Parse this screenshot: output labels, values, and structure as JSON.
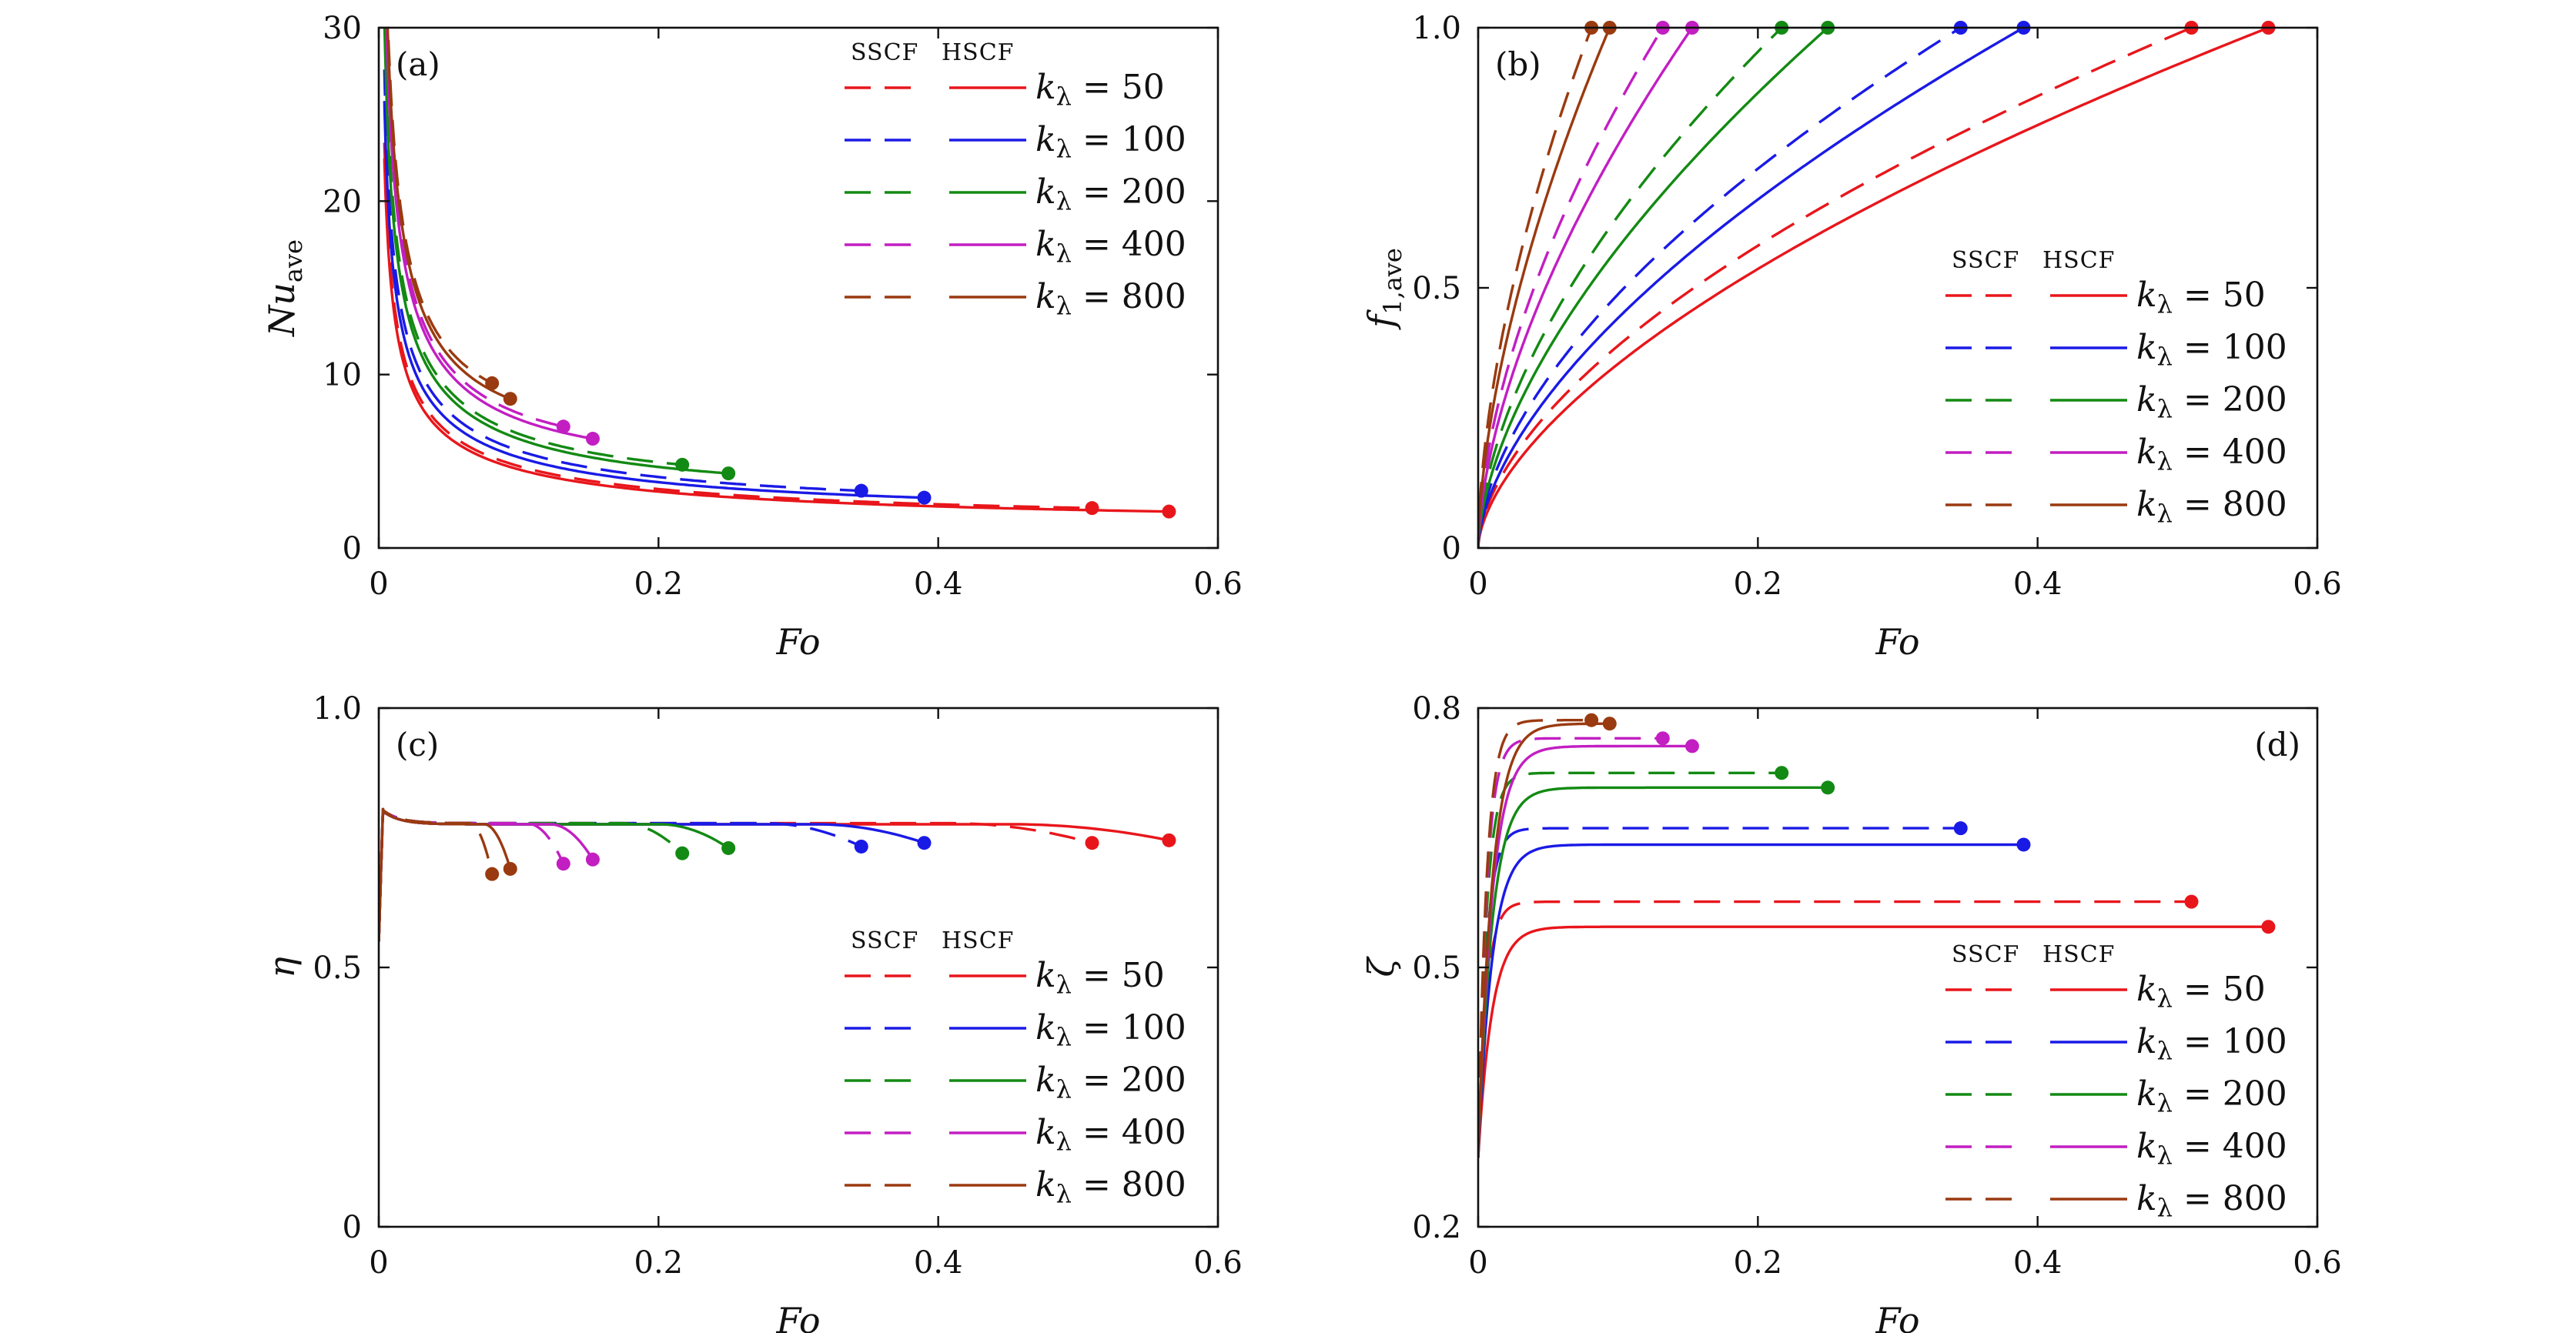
{
  "figure": {
    "series_meta": [
      {
        "k": "50",
        "color": "#e8161b"
      },
      {
        "k": "100",
        "color": "#1a1ae6"
      },
      {
        "k": "200",
        "color": "#138a13"
      },
      {
        "k": "400",
        "color": "#c21ec2"
      },
      {
        "k": "800",
        "color": "#9a3a10"
      }
    ],
    "legend_header": {
      "sscf": "SSCF",
      "hscf": "HSCF"
    },
    "legend_prefix": "kλ = "
  },
  "chart_data": [
    {
      "id": "a",
      "type": "line",
      "tag": "(a)",
      "xlabel": "Fo",
      "ylabel": "Nu_ave",
      "xlim": [
        0,
        0.6
      ],
      "ylim": [
        0,
        30
      ],
      "xticks": [
        "0",
        "0.2",
        "0.4",
        "0.6"
      ],
      "yticks": [
        "0",
        "10",
        "20",
        "30"
      ],
      "legend_pos": "top-right",
      "series": [
        {
          "k": "50",
          "variant": "SSCF",
          "end_x": 0.51,
          "end_y": 2.3
        },
        {
          "k": "50",
          "variant": "HSCF",
          "end_x": 0.565,
          "end_y": 2.1
        },
        {
          "k": "100",
          "variant": "SSCF",
          "end_x": 0.345,
          "end_y": 3.3
        },
        {
          "k": "100",
          "variant": "HSCF",
          "end_x": 0.39,
          "end_y": 2.9
        },
        {
          "k": "200",
          "variant": "SSCF",
          "end_x": 0.217,
          "end_y": 4.8
        },
        {
          "k": "200",
          "variant": "HSCF",
          "end_x": 0.25,
          "end_y": 4.3
        },
        {
          "k": "400",
          "variant": "SSCF",
          "end_x": 0.132,
          "end_y": 7.0
        },
        {
          "k": "400",
          "variant": "HSCF",
          "end_x": 0.153,
          "end_y": 6.3
        },
        {
          "k": "800",
          "variant": "SSCF",
          "end_x": 0.081,
          "end_y": 9.5
        },
        {
          "k": "800",
          "variant": "HSCF",
          "end_x": 0.094,
          "end_y": 8.6
        }
      ]
    },
    {
      "id": "b",
      "type": "line",
      "tag": "(b)",
      "xlabel": "Fo",
      "ylabel": "f_1,ave",
      "xlim": [
        0,
        0.6
      ],
      "ylim": [
        0,
        1.0
      ],
      "xticks": [
        "0",
        "0.2",
        "0.4",
        "0.6"
      ],
      "yticks": [
        "0",
        "0.5",
        "1.0"
      ],
      "legend_pos": "bottom-right",
      "series": [
        {
          "k": "50",
          "variant": "SSCF",
          "end_x": 0.51,
          "end_y": 1.0
        },
        {
          "k": "50",
          "variant": "HSCF",
          "end_x": 0.565,
          "end_y": 1.0
        },
        {
          "k": "100",
          "variant": "SSCF",
          "end_x": 0.345,
          "end_y": 1.0
        },
        {
          "k": "100",
          "variant": "HSCF",
          "end_x": 0.39,
          "end_y": 1.0
        },
        {
          "k": "200",
          "variant": "SSCF",
          "end_x": 0.217,
          "end_y": 1.0
        },
        {
          "k": "200",
          "variant": "HSCF",
          "end_x": 0.25,
          "end_y": 1.0
        },
        {
          "k": "400",
          "variant": "SSCF",
          "end_x": 0.132,
          "end_y": 1.0
        },
        {
          "k": "400",
          "variant": "HSCF",
          "end_x": 0.153,
          "end_y": 1.0
        },
        {
          "k": "800",
          "variant": "SSCF",
          "end_x": 0.081,
          "end_y": 1.0
        },
        {
          "k": "800",
          "variant": "HSCF",
          "end_x": 0.094,
          "end_y": 1.0
        }
      ]
    },
    {
      "id": "c",
      "type": "line",
      "tag": "(c)",
      "xlabel": "Fo",
      "ylabel": "η",
      "xlim": [
        0,
        0.6
      ],
      "ylim": [
        0,
        1.0
      ],
      "xticks": [
        "0",
        "0.2",
        "0.4",
        "0.6"
      ],
      "yticks": [
        "0",
        "0.5",
        "1.0"
      ],
      "legend_pos": "bottom-right",
      "series": [
        {
          "k": "50",
          "variant": "SSCF",
          "plateau": 0.778,
          "end_x": 0.51,
          "end_y": 0.74
        },
        {
          "k": "50",
          "variant": "HSCF",
          "plateau": 0.776,
          "end_x": 0.565,
          "end_y": 0.745
        },
        {
          "k": "100",
          "variant": "SSCF",
          "plateau": 0.778,
          "end_x": 0.345,
          "end_y": 0.733
        },
        {
          "k": "100",
          "variant": "HSCF",
          "plateau": 0.776,
          "end_x": 0.39,
          "end_y": 0.74
        },
        {
          "k": "200",
          "variant": "SSCF",
          "plateau": 0.778,
          "end_x": 0.217,
          "end_y": 0.72
        },
        {
          "k": "200",
          "variant": "HSCF",
          "plateau": 0.776,
          "end_x": 0.25,
          "end_y": 0.73
        },
        {
          "k": "400",
          "variant": "SSCF",
          "plateau": 0.778,
          "end_x": 0.132,
          "end_y": 0.7
        },
        {
          "k": "400",
          "variant": "HSCF",
          "plateau": 0.776,
          "end_x": 0.153,
          "end_y": 0.708
        },
        {
          "k": "800",
          "variant": "SSCF",
          "plateau": 0.778,
          "end_x": 0.081,
          "end_y": 0.68
        },
        {
          "k": "800",
          "variant": "HSCF",
          "plateau": 0.776,
          "end_x": 0.094,
          "end_y": 0.69
        }
      ]
    },
    {
      "id": "d",
      "type": "line",
      "tag": "(d)",
      "xlabel": "Fo",
      "ylabel": "ζ",
      "xlim": [
        0,
        0.6
      ],
      "ylim": [
        0.2,
        0.8
      ],
      "xticks": [
        "0",
        "0.2",
        "0.4",
        "0.6"
      ],
      "yticks": [
        "0.2",
        "0.5",
        "0.8"
      ],
      "legend_pos": "bottom-right",
      "series": [
        {
          "k": "50",
          "variant": "SSCF",
          "plateau": 0.576,
          "end_x": 0.51,
          "end_y": 0.576
        },
        {
          "k": "50",
          "variant": "HSCF",
          "plateau": 0.547,
          "end_x": 0.565,
          "end_y": 0.547
        },
        {
          "k": "100",
          "variant": "SSCF",
          "plateau": 0.661,
          "end_x": 0.345,
          "end_y": 0.661
        },
        {
          "k": "100",
          "variant": "HSCF",
          "plateau": 0.642,
          "end_x": 0.39,
          "end_y": 0.642
        },
        {
          "k": "200",
          "variant": "SSCF",
          "plateau": 0.725,
          "end_x": 0.217,
          "end_y": 0.725
        },
        {
          "k": "200",
          "variant": "HSCF",
          "plateau": 0.708,
          "end_x": 0.25,
          "end_y": 0.708
        },
        {
          "k": "400",
          "variant": "SSCF",
          "plateau": 0.765,
          "end_x": 0.132,
          "end_y": 0.765
        },
        {
          "k": "400",
          "variant": "HSCF",
          "plateau": 0.756,
          "end_x": 0.153,
          "end_y": 0.756
        },
        {
          "k": "800",
          "variant": "SSCF",
          "plateau": 0.786,
          "end_x": 0.081,
          "end_y": 0.786
        },
        {
          "k": "800",
          "variant": "HSCF",
          "plateau": 0.782,
          "end_x": 0.094,
          "end_y": 0.782
        }
      ]
    }
  ]
}
